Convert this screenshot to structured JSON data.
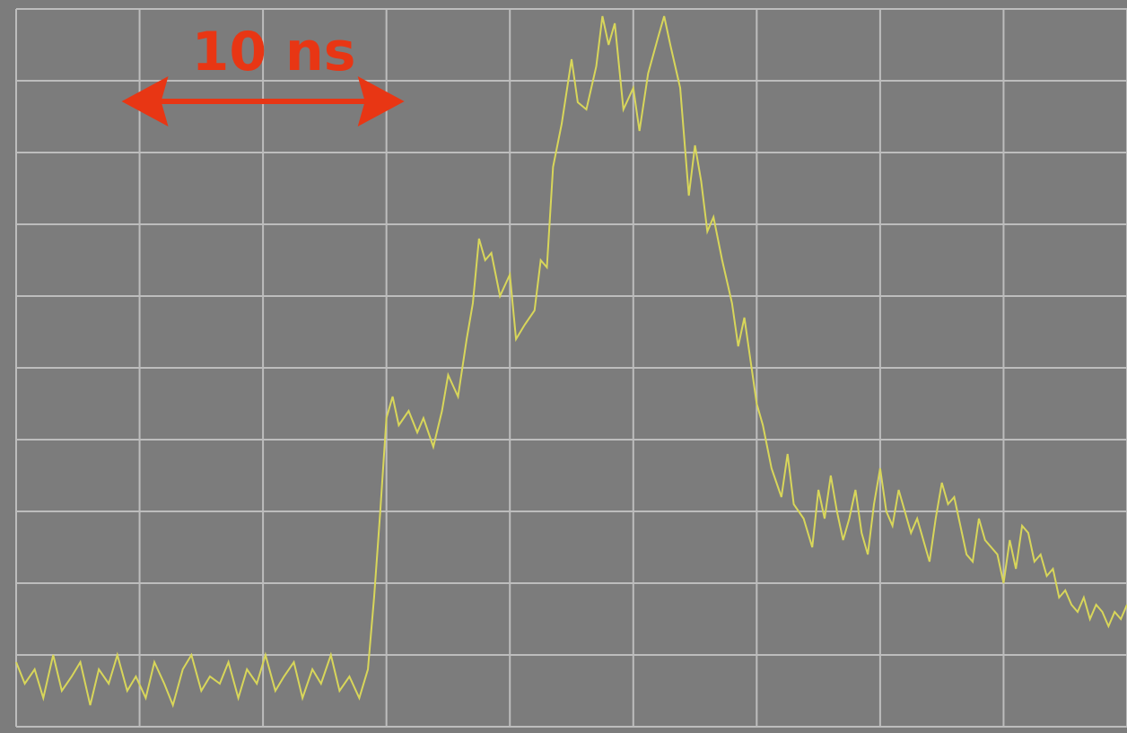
{
  "chart_data": {
    "type": "line",
    "title": "",
    "xlabel": "",
    "ylabel": "",
    "grid": true,
    "xlim": [
      0,
      9
    ],
    "ylim": [
      0,
      10
    ],
    "series": [
      {
        "values_x": [
          0,
          0.07,
          0.15,
          0.22,
          0.3,
          0.37,
          0.45,
          0.52,
          0.6,
          0.67,
          0.75,
          0.82,
          0.9,
          0.97,
          1.05,
          1.12,
          1.2,
          1.27,
          1.35,
          1.42,
          1.5,
          1.57,
          1.65,
          1.72,
          1.8,
          1.87,
          1.95,
          2.02,
          2.1,
          2.17,
          2.25,
          2.32,
          2.4,
          2.47,
          2.55,
          2.62,
          2.7,
          2.78,
          2.85,
          2.9,
          2.95,
          3.0,
          3.05,
          3.1,
          3.18,
          3.25,
          3.3,
          3.38,
          3.45,
          3.5,
          3.58,
          3.65,
          3.7,
          3.75,
          3.8,
          3.85,
          3.92,
          4.0,
          4.05,
          4.12,
          4.2,
          4.25,
          4.3,
          4.35,
          4.42,
          4.5,
          4.55,
          4.62,
          4.7,
          4.75,
          4.8,
          4.85,
          4.92,
          5.0,
          5.05,
          5.12,
          5.2,
          5.25,
          5.3,
          5.38,
          5.45,
          5.5,
          5.55,
          5.6,
          5.65,
          5.72,
          5.8,
          5.85,
          5.9,
          5.95,
          6.0,
          6.05,
          6.12,
          6.2,
          6.25,
          6.3,
          6.38,
          6.45,
          6.5,
          6.55,
          6.6,
          6.65,
          6.7,
          6.75,
          6.8,
          6.85,
          6.9,
          6.95,
          7.0,
          7.05,
          7.1,
          7.15,
          7.2,
          7.25,
          7.3,
          7.35,
          7.4,
          7.45,
          7.5,
          7.55,
          7.6,
          7.65,
          7.7,
          7.75,
          7.8,
          7.85,
          7.9,
          7.95,
          8.0,
          8.05,
          8.1,
          8.15,
          8.2,
          8.25,
          8.3,
          8.35,
          8.4,
          8.45,
          8.5,
          8.55,
          8.6,
          8.65,
          8.7,
          8.75,
          8.8,
          8.85,
          8.9,
          8.95,
          9.0
        ],
        "values_y": [
          0.9,
          0.6,
          0.8,
          0.4,
          1.0,
          0.5,
          0.7,
          0.9,
          0.3,
          0.8,
          0.6,
          1.0,
          0.5,
          0.7,
          0.4,
          0.9,
          0.6,
          0.3,
          0.8,
          1.0,
          0.5,
          0.7,
          0.6,
          0.9,
          0.4,
          0.8,
          0.6,
          1.0,
          0.5,
          0.7,
          0.9,
          0.4,
          0.8,
          0.6,
          1.0,
          0.5,
          0.7,
          0.4,
          0.8,
          1.8,
          3.0,
          4.3,
          4.6,
          4.2,
          4.4,
          4.1,
          4.3,
          3.9,
          4.4,
          4.9,
          4.6,
          5.4,
          5.9,
          6.8,
          6.5,
          6.6,
          6.0,
          6.3,
          5.4,
          5.6,
          5.8,
          6.5,
          6.4,
          7.8,
          8.4,
          9.3,
          8.7,
          8.6,
          9.2,
          9.9,
          9.5,
          9.8,
          8.6,
          8.9,
          8.3,
          9.1,
          9.6,
          9.9,
          9.5,
          8.9,
          7.4,
          8.1,
          7.6,
          6.9,
          7.1,
          6.5,
          5.9,
          5.3,
          5.7,
          5.1,
          4.5,
          4.2,
          3.6,
          3.2,
          3.8,
          3.1,
          2.9,
          2.5,
          3.3,
          2.9,
          3.5,
          3.0,
          2.6,
          2.9,
          3.3,
          2.7,
          2.4,
          3.1,
          3.6,
          3.0,
          2.8,
          3.3,
          3.0,
          2.7,
          2.9,
          2.6,
          2.3,
          2.9,
          3.4,
          3.1,
          3.2,
          2.8,
          2.4,
          2.3,
          2.9,
          2.6,
          2.5,
          2.4,
          2.0,
          2.6,
          2.2,
          2.8,
          2.7,
          2.3,
          2.4,
          2.1,
          2.2,
          1.8,
          1.9,
          1.7,
          1.6,
          1.8,
          1.5,
          1.7,
          1.6,
          1.4,
          1.6,
          1.5,
          1.7
        ]
      }
    ],
    "annotations": [
      {
        "text": "10 ns",
        "type": "double-arrow",
        "from_x": 1,
        "to_x": 3,
        "color": "#e83614"
      }
    ]
  },
  "colors": {
    "screen_bg": "#7c7c7c",
    "grid": "#bdbdbd",
    "trace": "#d8d65a",
    "annotation": "#e83614"
  }
}
